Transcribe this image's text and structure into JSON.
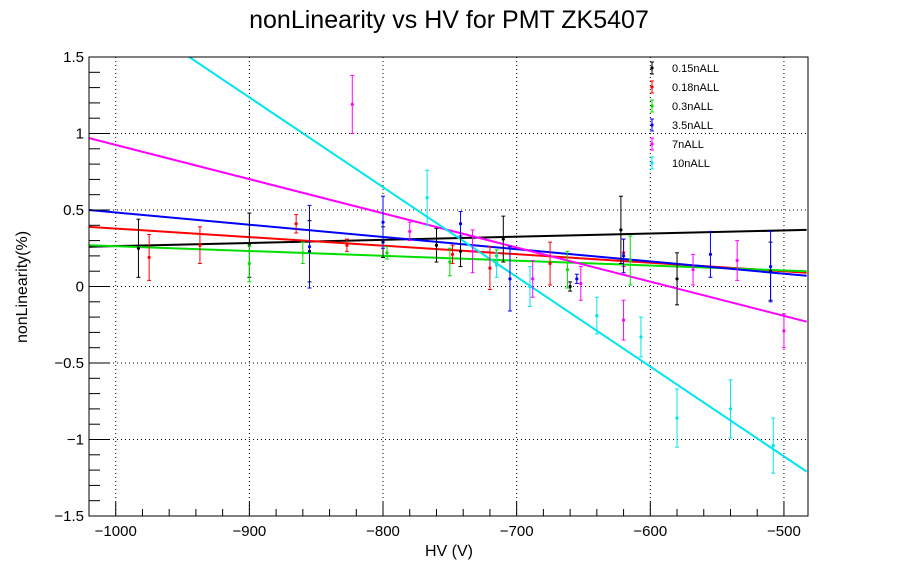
{
  "chart_data": {
    "type": "scatter",
    "title": "nonLinearity vs HV for PMT ZK5407",
    "xlabel": "HV (V)",
    "ylabel": "nonLinearity(%)",
    "xlim": [
      -1020,
      -482
    ],
    "ylim": [
      -1.5,
      1.5
    ],
    "x_ticks": [
      -1000,
      -900,
      -800,
      -700,
      -600,
      -500
    ],
    "x_tick_labels": [
      "−1000",
      "−900",
      "−800",
      "−700",
      "−600",
      "−500"
    ],
    "y_ticks": [
      -1.5,
      -1,
      -0.5,
      0,
      0.5,
      1,
      1.5
    ],
    "y_tick_labels": [
      "−1.5",
      "−1",
      "−0.5",
      "0",
      "0.5",
      "1",
      "1.5"
    ],
    "grid": true,
    "legend_position": "top-right",
    "series": [
      {
        "name": "0.15nALL",
        "color": "#000000",
        "points": [
          [
            -983,
            0.25,
            0.19
          ],
          [
            -900,
            0.27,
            0.21
          ],
          [
            -855,
            0.23,
            0.2
          ],
          [
            -800,
            0.29,
            0.1
          ],
          [
            -760,
            0.27,
            0.11
          ],
          [
            -742,
            0.23,
            0.1
          ],
          [
            -710,
            0.31,
            0.15
          ],
          [
            -660,
            0.0,
            0.03
          ],
          [
            -622,
            0.37,
            0.22
          ],
          [
            -580,
            0.05,
            0.17
          ],
          [
            -510,
            0.1,
            0.19
          ]
        ],
        "fit": [
          [
            -1020,
            0.26
          ],
          [
            -483,
            0.37
          ]
        ]
      },
      {
        "name": "0.18nALL",
        "color": "#ff0000",
        "points": [
          [
            -975,
            0.19,
            0.15
          ],
          [
            -937,
            0.27,
            0.12
          ],
          [
            -865,
            0.41,
            0.06
          ],
          [
            -827,
            0.27,
            0.04
          ],
          [
            -748,
            0.21,
            0.06
          ],
          [
            -720,
            0.12,
            0.14
          ],
          [
            -675,
            0.15,
            0.14
          ],
          [
            -620,
            0.22,
            0.09
          ]
        ],
        "fit": [
          [
            -1020,
            0.39
          ],
          [
            -483,
            0.09
          ]
        ]
      },
      {
        "name": "0.3nALL",
        "color": "#00e000",
        "points": [
          [
            -900,
            0.15,
            0.12
          ],
          [
            -860,
            0.22,
            0.07
          ],
          [
            -797,
            0.22,
            0.04
          ],
          [
            -750,
            0.16,
            0.09
          ],
          [
            -715,
            0.2,
            0.04
          ],
          [
            -662,
            0.11,
            0.12
          ],
          [
            -615,
            0.17,
            0.16
          ]
        ],
        "fit": [
          [
            -1020,
            0.27
          ],
          [
            -483,
            0.1
          ]
        ]
      },
      {
        "name": "3.5nALL",
        "color": "#0000ff",
        "points": [
          [
            -855,
            0.26,
            0.27
          ],
          [
            -800,
            0.42,
            0.17
          ],
          [
            -742,
            0.41,
            0.08
          ],
          [
            -705,
            0.05,
            0.21
          ],
          [
            -655,
            0.05,
            0.03
          ],
          [
            -620,
            0.2,
            0.11
          ],
          [
            -555,
            0.21,
            0.15
          ],
          [
            -510,
            0.13,
            0.23
          ]
        ],
        "fit": [
          [
            -1020,
            0.5
          ],
          [
            -483,
            0.07
          ]
        ]
      },
      {
        "name": "7nALL",
        "color": "#ff00ff",
        "points": [
          [
            -823,
            1.19,
            0.19
          ],
          [
            -780,
            0.36,
            0.06
          ],
          [
            -733,
            0.23,
            0.14
          ],
          [
            -688,
            0.05,
            0.12
          ],
          [
            -652,
            0.02,
            0.11
          ],
          [
            -620,
            -0.22,
            0.13
          ],
          [
            -568,
            0.11,
            0.1
          ],
          [
            -535,
            0.17,
            0.13
          ],
          [
            -500,
            -0.29,
            0.11
          ]
        ],
        "fit": [
          [
            -1020,
            0.97
          ],
          [
            -483,
            -0.23
          ]
        ]
      },
      {
        "name": "10nALL",
        "color": "#00e5ee",
        "points": [
          [
            -767,
            0.58,
            0.18
          ],
          [
            -715,
            0.14,
            0.08
          ],
          [
            -690,
            0.0,
            0.13
          ],
          [
            -640,
            -0.19,
            0.12
          ],
          [
            -607,
            -0.33,
            0.13
          ],
          [
            -580,
            -0.86,
            0.19
          ],
          [
            -540,
            -0.8,
            0.19
          ],
          [
            -508,
            -1.04,
            0.18
          ]
        ],
        "fit": [
          [
            -945,
            1.5
          ],
          [
            -483,
            -1.21
          ]
        ]
      }
    ]
  }
}
